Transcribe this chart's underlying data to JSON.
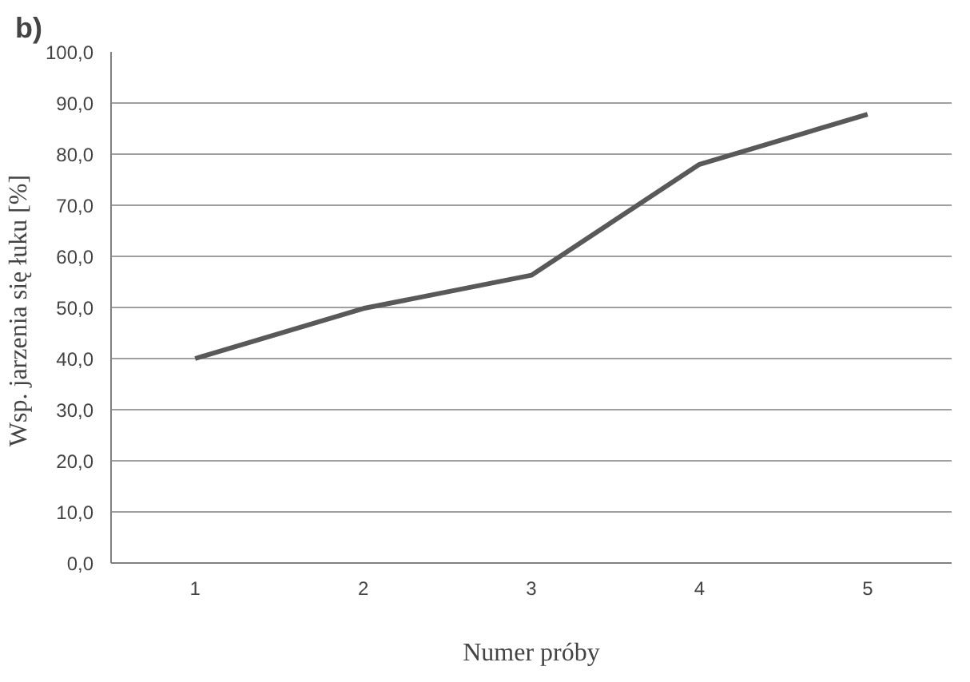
{
  "chart_data": {
    "type": "line",
    "title": "b)",
    "xlabel": "Numer próby",
    "ylabel": "Wsp. jarzenia się łuku  [%]",
    "categories": [
      "1",
      "2",
      "3",
      "4",
      "5"
    ],
    "series": [
      {
        "color": "#595959",
        "values": [
          40.0,
          49.8,
          56.3,
          78.0,
          87.8
        ]
      }
    ],
    "ylim": [
      0,
      100
    ],
    "yticks": [
      {
        "value": 0,
        "label": "0,0"
      },
      {
        "value": 10,
        "label": "10,0"
      },
      {
        "value": 20,
        "label": "20,0"
      },
      {
        "value": 30,
        "label": "30,0"
      },
      {
        "value": 40,
        "label": "40,0"
      },
      {
        "value": 50,
        "label": "50,0"
      },
      {
        "value": 60,
        "label": "60,0"
      },
      {
        "value": 70,
        "label": "70,0"
      },
      {
        "value": 80,
        "label": "80,0"
      },
      {
        "value": 90,
        "label": "90,0"
      },
      {
        "value": 100,
        "label": "100,0"
      }
    ],
    "grid": "y",
    "marker": "none",
    "line_style": "solid"
  }
}
